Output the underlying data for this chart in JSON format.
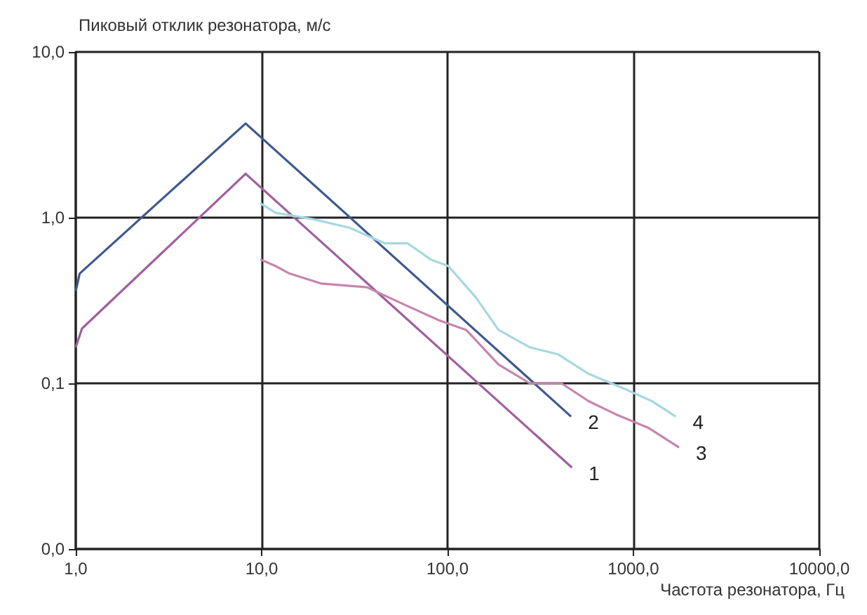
{
  "chart_data": {
    "type": "line",
    "xlabel": "Частота резонатора, Гц",
    "ylabel": "Пиковый отклик резонатора, м/с",
    "log": "xy",
    "grid": true,
    "marker": "none",
    "line_style": "solid",
    "xlim": [
      1,
      10000
    ],
    "ylim": [
      0.01,
      10
    ],
    "xticks": [
      {
        "value": 1,
        "label": "1,0"
      },
      {
        "value": 10,
        "label": "10,0"
      },
      {
        "value": 100,
        "label": "100,0"
      },
      {
        "value": 1000,
        "label": "1000,0"
      },
      {
        "value": 10000,
        "label": "10000,0"
      }
    ],
    "yticks": [
      {
        "value": 0.01,
        "label": "0,0"
      },
      {
        "value": 0.1,
        "label": "0,1"
      },
      {
        "value": 1,
        "label": "1,0"
      },
      {
        "value": 10,
        "label": "10,0"
      }
    ],
    "series": [
      {
        "name": "1",
        "color": "#a0609e",
        "x": [
          1,
          1.08,
          8.2,
          467
        ],
        "values": [
          0.165,
          0.214,
          1.84,
          0.031
        ]
      },
      {
        "name": "2",
        "color": "#3d5a8e",
        "x": [
          1,
          1.05,
          8.2,
          462
        ],
        "values": [
          0.36,
          0.46,
          3.7,
          0.063
        ]
      },
      {
        "name": "3",
        "color": "#c685ad",
        "x": [
          9.84,
          11.9,
          14.1,
          21,
          36.8,
          58,
          90,
          126,
          188,
          277,
          410,
          575,
          805,
          1200,
          1760
        ],
        "values": [
          0.56,
          0.51,
          0.46,
          0.4,
          0.38,
          0.3,
          0.24,
          0.21,
          0.13,
          0.1,
          0.1,
          0.078,
          0.065,
          0.054,
          0.041
        ]
      },
      {
        "name": "4",
        "color": "#a6d8e0",
        "x": [
          9.84,
          11.9,
          18.8,
          29.6,
          45.9,
          61,
          81,
          101,
          142,
          188,
          277,
          392,
          575,
          908,
          1260,
          1690
        ],
        "values": [
          1.22,
          1.07,
          0.98,
          0.87,
          0.7,
          0.7,
          0.56,
          0.51,
          0.33,
          0.21,
          0.165,
          0.15,
          0.114,
          0.092,
          0.078,
          0.063
        ]
      }
    ]
  }
}
